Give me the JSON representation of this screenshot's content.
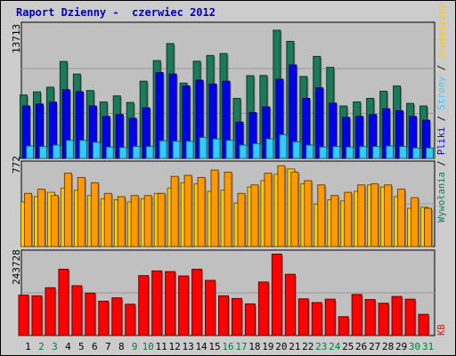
{
  "title": "Raport Dzienny -  czerwiec 2012",
  "chart_data": {
    "type": "bar",
    "categories": [
      "1",
      "2",
      "3",
      "4",
      "5",
      "6",
      "7",
      "8",
      "9",
      "10",
      "11",
      "12",
      "13",
      "14",
      "15",
      "16",
      "17",
      "18",
      "19",
      "20",
      "21",
      "22",
      "23",
      "24",
      "25",
      "26",
      "27",
      "28",
      "29",
      "30",
      "31"
    ],
    "weekend_days": [
      "2",
      "3",
      "9",
      "10",
      "16",
      "17",
      "23",
      "24",
      "30",
      "31"
    ],
    "panels": [
      {
        "ymax_label": "13713",
        "ymax": 13713,
        "series": [
          {
            "name": "Wywołania",
            "color": "#1b7a5a",
            "values": [
              6650,
              6980,
              7470,
              10170,
              8850,
              7120,
              5920,
              6560,
              5870,
              8100,
              10260,
              12050,
              7900,
              10200,
              10800,
              11000,
              6300,
              8680,
              8700,
              13450,
              12280,
              8600,
              10700,
              9550,
              5500,
              5930,
              6300,
              7050,
              7600,
              5770,
              5500
            ]
          },
          {
            "name": "Pliki",
            "color": "#0000ee",
            "values": [
              5500,
              5700,
              5900,
              7200,
              7000,
              5500,
              4400,
              4600,
              4200,
              5300,
              9000,
              8850,
              7600,
              8200,
              7800,
              8100,
              3800,
              4800,
              5400,
              8300,
              9800,
              6300,
              7400,
              5800,
              4300,
              4400,
              4600,
              5200,
              5000,
              4400,
              4000
            ]
          },
          {
            "name": "Strony",
            "color": "#33ccff",
            "values": [
              1300,
              1250,
              1400,
              1900,
              1900,
              1700,
              1200,
              1150,
              1250,
              1250,
              1850,
              1800,
              1800,
              2200,
              2050,
              1900,
              1400,
              1550,
              2050,
              2500,
              1750,
              1400,
              1200,
              1250,
              1200,
              1250,
              1250,
              1300,
              1250,
              1100,
              1100
            ]
          }
        ]
      },
      {
        "ymax_label": "772",
        "ymax": 772,
        "series": [
          {
            "name": "Odwiedziny",
            "color": "#ffcc00",
            "values": [
              420,
              470,
              510,
              550,
              530,
              480,
              450,
              440,
              420,
              450,
              500,
              550,
              600,
              590,
              520,
              530,
              410,
              560,
              620,
              680,
              730,
              590,
              400,
              440,
              430,
              520,
              580,
              560,
              470,
              360,
              370
            ]
          },
          {
            "name": "Lokalizacje",
            "color": "#ff9900",
            "values": [
              500,
              540,
              480,
              690,
              650,
              600,
              500,
              470,
              480,
              480,
              500,
              660,
              670,
              650,
              720,
              700,
              500,
              580,
              690,
              760,
              700,
              620,
              580,
              480,
              510,
              580,
              590,
              580,
              540,
              460,
              360
            ]
          }
        ]
      },
      {
        "ymax_label": "243728",
        "ymax": 243728,
        "series": [
          {
            "name": "KB",
            "color": "#ff0000",
            "values": [
              120000,
              118000,
              142000,
              197000,
              148000,
              126000,
              102000,
              112000,
              93000,
              178000,
              192000,
              190000,
              177000,
              197000,
              164000,
              118000,
              110000,
              94000,
              159000,
              242000,
              182000,
              109000,
              98000,
              108000,
              56000,
              122000,
              107000,
              96000,
              116000,
              108000,
              63000
            ]
          }
        ]
      }
    ]
  },
  "legend": {
    "top_labels": [
      {
        "text": "Wywołania",
        "color": "#1b7a5a"
      },
      {
        "text": " / ",
        "color": "#000000"
      },
      {
        "text": "Pliki",
        "color": "#0000ee"
      },
      {
        "text": " / ",
        "color": "#000000"
      },
      {
        "text": "Strony",
        "color": "#33ccff"
      },
      {
        "text": " / ",
        "color": "#000000"
      },
      {
        "text": "Odwiedziny",
        "color": "#ffcc00"
      },
      {
        "text": " / ",
        "color": "#000000"
      },
      {
        "text": "Lokalizacje",
        "color": "#ff9900"
      }
    ],
    "kb_label": {
      "text": "KB",
      "color": "#ff0000"
    }
  },
  "colors": {
    "plot_bg": "#c0c0c0",
    "weekday_label": "#000000",
    "weekend_label": "#008040",
    "title": "#0000c8"
  }
}
